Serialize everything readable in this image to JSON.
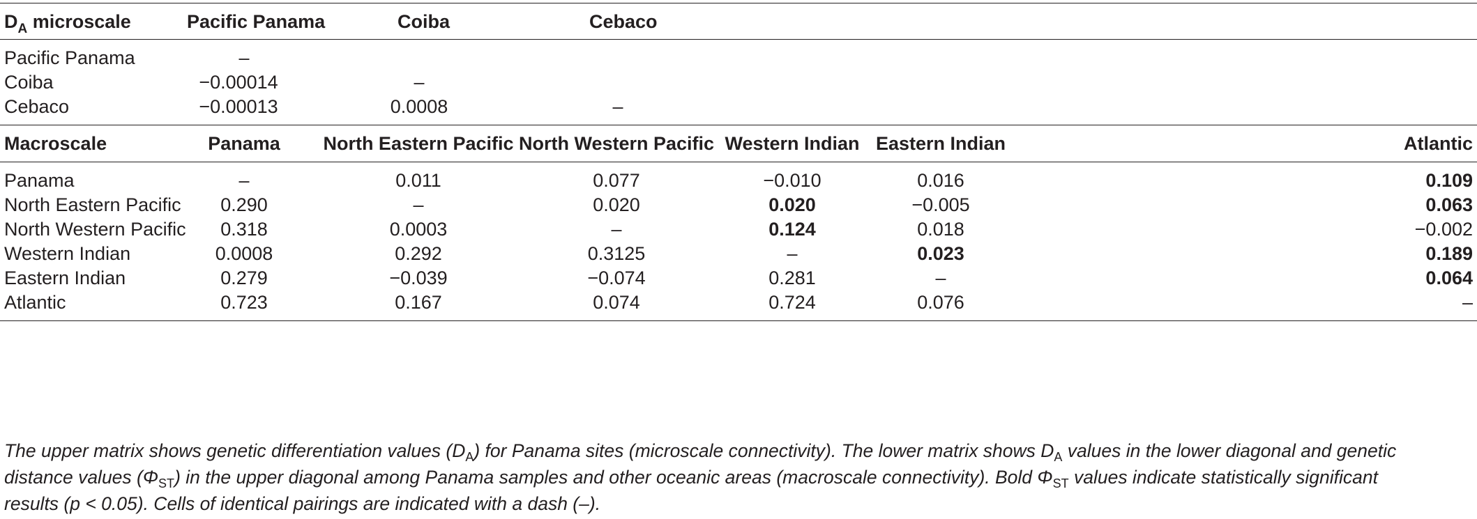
{
  "micro": {
    "corner_main": "D",
    "corner_sub": "A",
    "corner_rest": " microscale",
    "cols": [
      "Pacific Panama",
      "Coiba",
      "Cebaco"
    ],
    "rows": [
      {
        "label": "Pacific Panama",
        "cells": [
          "–",
          "",
          ""
        ]
      },
      {
        "label": "Coiba",
        "cells": [
          "−0.00014",
          "–",
          ""
        ]
      },
      {
        "label": "Cebaco",
        "cells": [
          "−0.00013",
          "0.0008",
          "–"
        ]
      }
    ]
  },
  "macro": {
    "corner": "Macroscale",
    "cols": [
      "Panama",
      "North Eastern Pacific",
      "North Western Pacific",
      "Western Indian",
      "Eastern Indian",
      "Atlantic"
    ],
    "rows": [
      {
        "label": "Panama",
        "cells": [
          "–",
          "0.011",
          "0.077",
          "−0.010",
          "0.016",
          "0.109"
        ],
        "bold": [
          false,
          false,
          false,
          false,
          false,
          true
        ]
      },
      {
        "label": "North Eastern Pacific",
        "cells": [
          "0.290",
          "–",
          "0.020",
          "0.020",
          "−0.005",
          "0.063"
        ],
        "bold": [
          false,
          false,
          false,
          true,
          false,
          true
        ]
      },
      {
        "label": "North Western Pacific",
        "cells": [
          "0.318",
          "0.0003",
          "–",
          "0.124",
          "0.018",
          "−0.002"
        ],
        "bold": [
          false,
          false,
          false,
          true,
          false,
          false
        ]
      },
      {
        "label": "Western Indian",
        "cells": [
          "0.0008",
          "0.292",
          "0.3125",
          "–",
          "0.023",
          "0.189"
        ],
        "bold": [
          false,
          false,
          false,
          false,
          true,
          true
        ]
      },
      {
        "label": "Eastern Indian",
        "cells": [
          "0.279",
          "−0.039",
          "−0.074",
          "0.281",
          "–",
          "0.064"
        ],
        "bold": [
          false,
          false,
          false,
          false,
          false,
          true
        ]
      },
      {
        "label": "Atlantic",
        "cells": [
          "0.723",
          "0.167",
          "0.074",
          "0.724",
          "0.076",
          "–"
        ],
        "bold": [
          false,
          false,
          false,
          false,
          false,
          false
        ]
      }
    ]
  },
  "caption": {
    "p1": "The upper matrix shows genetic differentiation values (D",
    "p1_sub": "A",
    "p2": ") for Panama sites (microscale connectivity). The lower matrix shows D",
    "p2_sub": "A",
    "p3": " values in the lower diagonal and genetic",
    "line2a": "distance values (Φ",
    "line2a_sub": "ST",
    "line2b": ") in the upper diagonal among Panama samples and other oceanic areas (macroscale connectivity). Bold Φ",
    "line2b_sub": "ST",
    "line2c": " values indicate statistically significant",
    "line3": "results (p < 0.05). Cells of identical pairings are indicated with a dash (–)."
  }
}
